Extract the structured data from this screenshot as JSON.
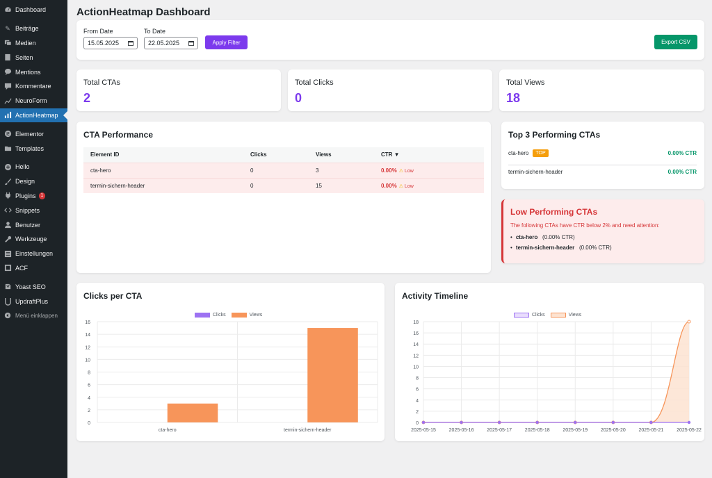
{
  "sidebar": {
    "items": [
      {
        "label": "Dashboard",
        "icon": "dashboard-icon"
      },
      {
        "label": "Beiträge",
        "icon": "pin-icon"
      },
      {
        "label": "Medien",
        "icon": "media-icon"
      },
      {
        "label": "Seiten",
        "icon": "page-icon"
      },
      {
        "label": "Mentions",
        "icon": "chat-icon"
      },
      {
        "label": "Kommentare",
        "icon": "comment-icon"
      },
      {
        "label": "NeuroForm",
        "icon": "chart-icon"
      },
      {
        "label": "ActionHeatmap",
        "icon": "bars-icon"
      },
      {
        "label": "Elementor",
        "icon": "elementor-icon"
      },
      {
        "label": "Templates",
        "icon": "folder-icon"
      },
      {
        "label": "Hello",
        "icon": "plus-circle-icon"
      },
      {
        "label": "Design",
        "icon": "brush-icon"
      },
      {
        "label": "Plugins",
        "icon": "plug-icon",
        "badge": "1"
      },
      {
        "label": "Snippets",
        "icon": "code-icon"
      },
      {
        "label": "Benutzer",
        "icon": "user-icon"
      },
      {
        "label": "Werkzeuge",
        "icon": "wrench-icon"
      },
      {
        "label": "Einstellungen",
        "icon": "settings-icon"
      },
      {
        "label": "ACF",
        "icon": "acf-icon"
      },
      {
        "label": "Yoast SEO",
        "icon": "yoast-icon"
      },
      {
        "label": "UpdraftPlus",
        "icon": "updraft-icon"
      },
      {
        "label": "Menü einklappen",
        "icon": "collapse-icon"
      }
    ]
  },
  "page": {
    "title": "ActionHeatmap Dashboard"
  },
  "filter": {
    "from_label": "From Date",
    "from_value": "15.05.2025",
    "to_label": "To Date",
    "to_value": "22.05.2025",
    "apply_label": "Apply Filter",
    "export_label": "Export CSV"
  },
  "stats": {
    "total_ctas_label": "Total CTAs",
    "total_ctas": "2",
    "total_clicks_label": "Total Clicks",
    "total_clicks": "0",
    "total_views_label": "Total Views",
    "total_views": "18"
  },
  "performance": {
    "title": "CTA Performance",
    "headers": [
      "Element ID",
      "Clicks",
      "Views",
      "CTR ▼"
    ],
    "rows": [
      {
        "id": "cta-hero",
        "clicks": "0",
        "views": "3",
        "ctr": "0.00%",
        "flag": "Low"
      },
      {
        "id": "termin-sichern-header",
        "clicks": "0",
        "views": "15",
        "ctr": "0.00%",
        "flag": "Low"
      }
    ]
  },
  "top3": {
    "title": "Top 3 Performing CTAs",
    "badge": "TOP",
    "rows": [
      {
        "id": "cta-hero",
        "ctr": "0.00% CTR"
      },
      {
        "id": "termin-sichern-header",
        "ctr": "0.00% CTR"
      }
    ]
  },
  "low": {
    "title": "Low Performing CTAs",
    "description": "The following CTAs have CTR below 2% and need attention:",
    "items": [
      {
        "id": "cta-hero",
        "ctr": "(0.00% CTR)"
      },
      {
        "id": "termin-sichern-header",
        "ctr": "(0.00% CTR)"
      }
    ]
  },
  "colors": {
    "accent": "#7c3aed",
    "export": "#059669",
    "views": "#f7955a",
    "clicks": "#9d72f2",
    "danger": "#d63638",
    "sidebar": "#1d2327",
    "active": "#2271b1"
  },
  "chart_data": [
    {
      "type": "bar",
      "title": "Clicks per CTA",
      "categories": [
        "cta-hero",
        "termin-sichern-header"
      ],
      "series": [
        {
          "name": "Clicks",
          "values": [
            0,
            0
          ]
        },
        {
          "name": "Views",
          "values": [
            3,
            15
          ]
        }
      ],
      "ylim": [
        0,
        16
      ],
      "yticks": [
        "16",
        "14",
        "12",
        "10",
        "8",
        "6",
        "4",
        "2",
        "0"
      ],
      "legend": "top-center",
      "grid": true
    },
    {
      "type": "line",
      "title": "Activity Timeline",
      "x": [
        "2025-05-15",
        "2025-05-16",
        "2025-05-17",
        "2025-05-18",
        "2025-05-19",
        "2025-05-20",
        "2025-05-21",
        "2025-05-22"
      ],
      "series": [
        {
          "name": "Clicks",
          "values": [
            0,
            0,
            0,
            0,
            0,
            0,
            0,
            0
          ]
        },
        {
          "name": "Views",
          "values": [
            0,
            0,
            0,
            0,
            0,
            0,
            0,
            18
          ]
        }
      ],
      "ylim": [
        0,
        18
      ],
      "yticks": [
        "18",
        "16",
        "14",
        "12",
        "10",
        "8",
        "6",
        "4",
        "2",
        "0"
      ],
      "legend": "top-center",
      "grid": true
    }
  ]
}
